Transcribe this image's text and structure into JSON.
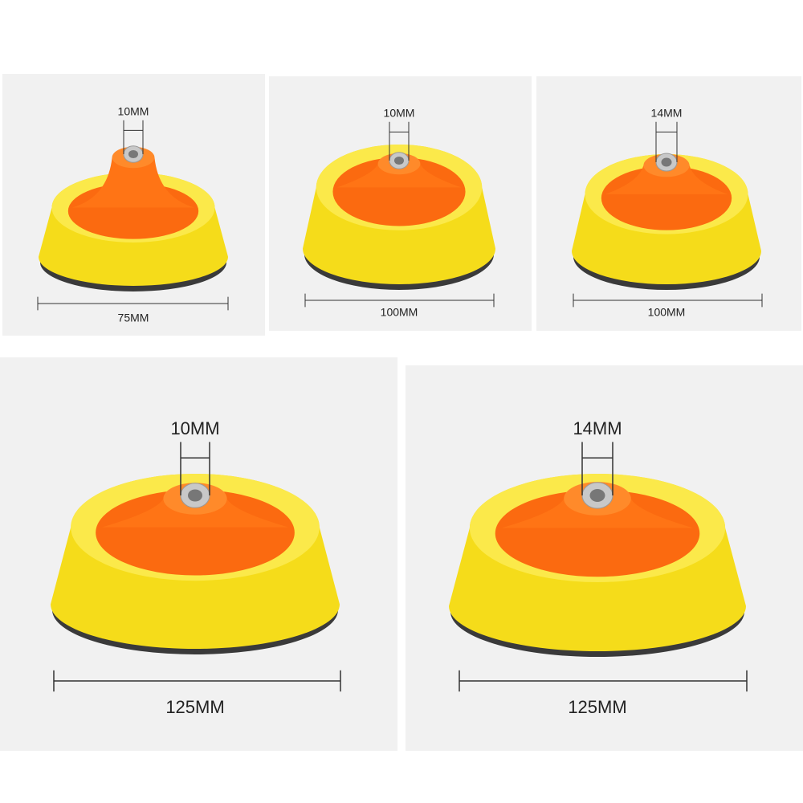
{
  "panels": [
    {
      "thread": "10MM",
      "diameter": "75MM"
    },
    {
      "thread": "10MM",
      "diameter": "100MM"
    },
    {
      "thread": "14MM",
      "diameter": "100MM"
    },
    {
      "thread": "10MM",
      "diameter": "125MM"
    },
    {
      "thread": "14MM",
      "diameter": "125MM"
    }
  ]
}
